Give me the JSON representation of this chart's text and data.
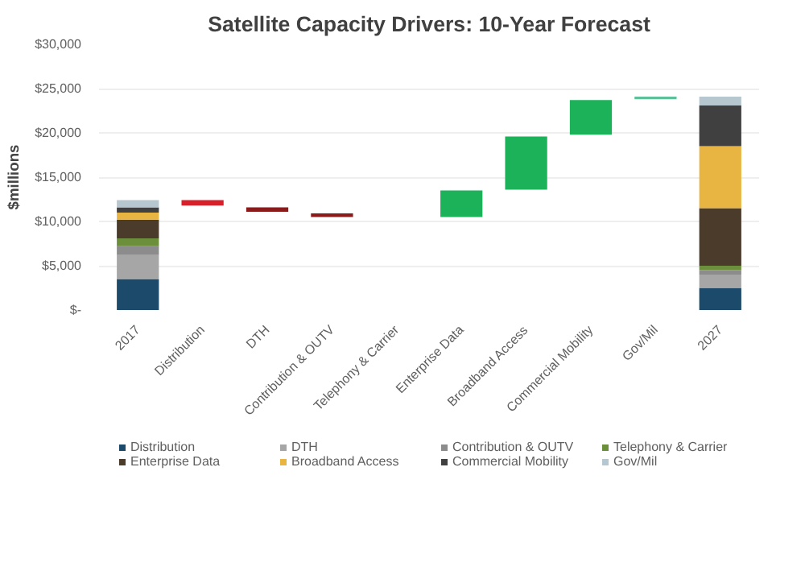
{
  "chart_data": {
    "type": "bar",
    "stacked": true,
    "title": "Satellite Capacity Drivers: 10-Year Forecast",
    "ylabel": "$millions",
    "categories": [
      "2017",
      "Distribution",
      "DTH",
      "Contribution & OUTV",
      "Telephony & Carrier",
      "Enterprise Data",
      "Broadband Access",
      "Commercial Mobility",
      "Gov/Mil",
      "2027"
    ],
    "series": [
      {
        "name": "Distribution",
        "color": "#1b4a6b",
        "values": [
          3500,
          null,
          null,
          null,
          null,
          null,
          null,
          null,
          null,
          2500
        ]
      },
      {
        "name": "DTH",
        "color": "#a6a6a6",
        "values": [
          2700,
          null,
          null,
          null,
          null,
          null,
          null,
          null,
          null,
          1500
        ]
      },
      {
        "name": "Contribution & OUTV",
        "color": "#8c8c8c",
        "values": [
          1000,
          null,
          null,
          null,
          null,
          null,
          null,
          null,
          null,
          500
        ]
      },
      {
        "name": "Telephony & Carrier",
        "color": "#6b8f3a",
        "values": [
          900,
          null,
          null,
          null,
          null,
          null,
          null,
          null,
          null,
          500
        ]
      },
      {
        "name": "Enterprise Data",
        "color": "#4a3b2b",
        "values": [
          2100,
          null,
          null,
          null,
          null,
          null,
          null,
          null,
          null,
          6500
        ]
      },
      {
        "name": "Broadband Access",
        "color": "#e8b442",
        "values": [
          800,
          null,
          null,
          null,
          null,
          null,
          null,
          null,
          null,
          7000
        ]
      },
      {
        "name": "Commercial Mobility",
        "color": "#404040",
        "values": [
          600,
          null,
          null,
          null,
          null,
          null,
          null,
          null,
          null,
          4600
        ]
      },
      {
        "name": "Gov/Mil",
        "color": "#b7c7cf",
        "values": [
          800,
          null,
          null,
          null,
          null,
          null,
          null,
          null,
          null,
          1000
        ]
      },
      {
        "colors": [
          "#d6202a",
          "#d6202a",
          "#8b1a1a",
          "#8b1a1a",
          "#8b1a1a",
          "#1bb25a",
          "#1bb25a",
          "#1bb25a",
          "#5fbf9a",
          "#1bb25a"
        ],
        "base": [
          null,
          12400,
          11600,
          10900,
          null,
          10500,
          13600,
          19800,
          23800,
          null
        ],
        "values": [
          null,
          -600,
          -500,
          -400,
          null,
          3000,
          6000,
          3900,
          300,
          null
        ]
      }
    ],
    "ylim": [
      0,
      30000
    ],
    "yticks": [
      {
        "value": 0,
        "label": "$-"
      },
      {
        "value": 5000,
        "label": "$5,000"
      },
      {
        "value": 10000,
        "label": "$10,000"
      },
      {
        "value": 15000,
        "label": "$15,000"
      },
      {
        "value": 20000,
        "label": "$20,000"
      },
      {
        "value": 25000,
        "label": "$25,000"
      },
      {
        "value": 30000,
        "label": "$30,000"
      }
    ],
    "grid": "y",
    "legend": "bottom"
  }
}
